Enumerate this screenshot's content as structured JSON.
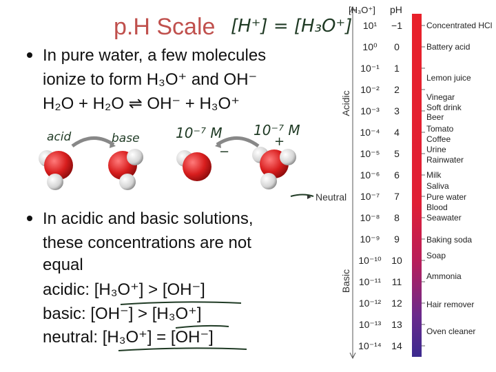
{
  "title": "p.H Scale",
  "handwriting": {
    "formula": "[H⁺] = [H₃O⁺]",
    "acid": "acid",
    "base": "base",
    "conc_left": "10⁻⁷ M",
    "conc_right": "10⁻⁷ M",
    "plus": "+",
    "minus": "−"
  },
  "bullets": [
    {
      "lines": [
        "In pure water, a few molecules",
        "ionize to form H₃O⁺ and OH⁻",
        "H₂O + H₂O ⇌ OH⁻ + H₃O⁺"
      ]
    },
    {
      "lines": [
        "In acidic and basic solutions,",
        "these concentrations are not",
        "equal",
        "acidic:  [H₃O⁺] > [OH⁻]",
        "basic:  [OH⁻] > [H₃O⁺]",
        "neutral: [H₃O⁺] = [OH⁻]"
      ]
    }
  ],
  "scale": {
    "header_conc": "[H₃O⁺]",
    "header_ph": "pH",
    "acidic": "Acidic",
    "basic": "Basic",
    "neutral": "Neutral",
    "rows": [
      {
        "conc": "10¹",
        "ph": "−1"
      },
      {
        "conc": "10⁰",
        "ph": "0"
      },
      {
        "conc": "10⁻¹",
        "ph": "1"
      },
      {
        "conc": "10⁻²",
        "ph": "2"
      },
      {
        "conc": "10⁻³",
        "ph": "3"
      },
      {
        "conc": "10⁻⁴",
        "ph": "4"
      },
      {
        "conc": "10⁻⁵",
        "ph": "5"
      },
      {
        "conc": "10⁻⁶",
        "ph": "6"
      },
      {
        "conc": "10⁻⁷",
        "ph": "7"
      },
      {
        "conc": "10⁻⁸",
        "ph": "8"
      },
      {
        "conc": "10⁻⁹",
        "ph": "9"
      },
      {
        "conc": "10⁻¹⁰",
        "ph": "10"
      },
      {
        "conc": "10⁻¹¹",
        "ph": "11"
      },
      {
        "conc": "10⁻¹²",
        "ph": "12"
      },
      {
        "conc": "10⁻¹³",
        "ph": "13"
      },
      {
        "conc": "10⁻¹⁴",
        "ph": "14"
      }
    ],
    "examples": [
      "Concentrated HCl",
      "Battery acid",
      "Lemon juice",
      "Vinegar",
      "Soft drink",
      "Beer",
      "Tomato",
      "Coffee",
      "Urine",
      "Rainwater",
      "Milk",
      "Saliva",
      "Pure water",
      "Blood",
      "Seawater",
      "Baking soda",
      "Soap",
      "Ammonia",
      "Hair remover",
      "Oven cleaner"
    ]
  }
}
